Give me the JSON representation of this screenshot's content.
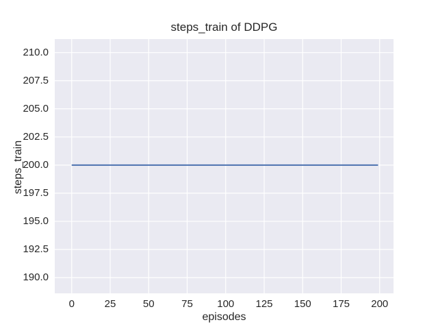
{
  "chart_data": {
    "type": "line",
    "title": "steps_train of DDPG",
    "xlabel": "episodes",
    "ylabel": "steps_train",
    "x_tick_labels": [
      "0",
      "25",
      "50",
      "75",
      "100",
      "125",
      "150",
      "175",
      "200"
    ],
    "y_tick_labels": [
      "190.0",
      "192.5",
      "195.0",
      "197.5",
      "200.0",
      "202.5",
      "205.0",
      "207.5",
      "210.0"
    ],
    "xlim": [
      -11,
      209
    ],
    "ylim": [
      188.6,
      211.2
    ],
    "grid": true,
    "legend": null,
    "series": [
      {
        "name": "steps_train",
        "color": "#4c72b0",
        "x": [
          0,
          199
        ],
        "y": [
          200,
          200
        ]
      }
    ]
  },
  "colors": {
    "figure_bg": "#ffffff",
    "plot_bg": "#eaeaf2",
    "grid": "#ffffff",
    "line": "#4c72b0",
    "text": "#262626"
  }
}
